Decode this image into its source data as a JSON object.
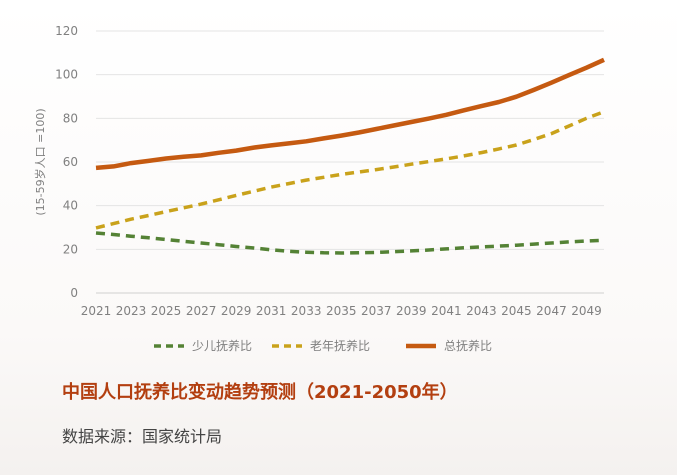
{
  "chart_data": {
    "type": "line",
    "title": "中国人口抚养比变动趋势预测（2021-2050年）",
    "source": "数据来源：国家统计局",
    "ylabel": "(15-59岁人口 =100)",
    "xlabel": "",
    "ylim": [
      0,
      120
    ],
    "yticks": [
      0,
      20,
      40,
      60,
      80,
      100,
      120
    ],
    "xlim": [
      2021,
      2050
    ],
    "xticks": [
      "2021",
      "2023",
      "2025",
      "2027",
      "2029",
      "2031",
      "2033",
      "2035",
      "2037",
      "2039",
      "2041",
      "2043",
      "2045",
      "2047",
      "2049"
    ],
    "grid": true,
    "legend_position": "bottom",
    "x": [
      2021,
      2022,
      2023,
      2024,
      2025,
      2026,
      2027,
      2028,
      2029,
      2030,
      2031,
      2032,
      2033,
      2034,
      2035,
      2036,
      2037,
      2038,
      2039,
      2040,
      2041,
      2042,
      2043,
      2044,
      2045,
      2046,
      2047,
      2048,
      2049,
      2050
    ],
    "series": [
      {
        "name": "少儿抚养比",
        "color": "#548235",
        "style": "dashed",
        "values": [
          27.5,
          26.8,
          26.0,
          25.3,
          24.5,
          23.7,
          22.9,
          22.1,
          21.3,
          20.6,
          19.8,
          19.1,
          18.7,
          18.4,
          18.3,
          18.4,
          18.6,
          18.9,
          19.3,
          19.7,
          20.2,
          20.7,
          21.1,
          21.5,
          21.9,
          22.4,
          22.9,
          23.4,
          23.8,
          24.2
        ]
      },
      {
        "name": "老年抚养比",
        "color": "#c9a21b",
        "style": "dashed",
        "values": [
          29.8,
          31.8,
          33.8,
          35.5,
          37.3,
          39.0,
          40.7,
          42.7,
          44.7,
          46.6,
          48.5,
          50.1,
          51.7,
          53.0,
          54.3,
          55.4,
          56.5,
          57.7,
          59.0,
          60.2,
          61.4,
          62.8,
          64.3,
          66.0,
          67.8,
          70.3,
          73.0,
          76.5,
          80.0,
          83.0
        ]
      },
      {
        "name": "总抚养比",
        "color": "#c55a11",
        "style": "solid",
        "values": [
          57.3,
          58.0,
          59.5,
          60.5,
          61.6,
          62.4,
          63.0,
          64.2,
          65.2,
          66.6,
          67.6,
          68.5,
          69.5,
          70.8,
          72.1,
          73.5,
          75.1,
          76.7,
          78.3,
          79.9,
          81.6,
          83.7,
          85.6,
          87.5,
          89.9,
          93.0,
          96.3,
          99.8,
          103.2,
          106.8
        ]
      }
    ]
  }
}
